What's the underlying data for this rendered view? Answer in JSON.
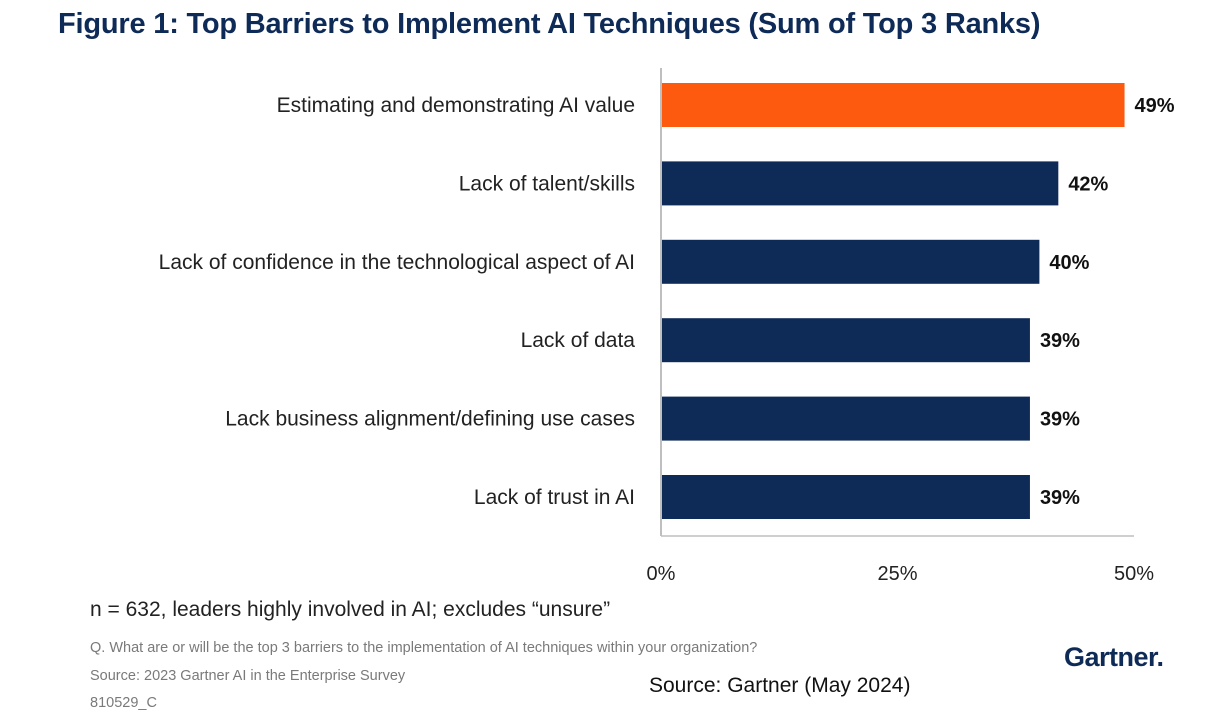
{
  "title": "Figure 1: Top Barriers to Implement AI Techniques (Sum of Top 3 Ranks)",
  "colors": {
    "highlight": "#fe5a0f",
    "bar": "#0e2a57",
    "title": "#0e2a57",
    "axis": "#bfbfbf"
  },
  "chart_data": {
    "type": "bar",
    "orientation": "horizontal",
    "categories": [
      "Estimating and demonstrating AI value",
      "Lack of talent/skills",
      "Lack of confidence in the technological aspect of AI",
      "Lack of data",
      "Lack business alignment/defining use cases",
      "Lack of trust in AI"
    ],
    "values": [
      49,
      42,
      40,
      39,
      39,
      39
    ],
    "value_labels": [
      "49%",
      "42%",
      "40%",
      "39%",
      "39%",
      "39%"
    ],
    "highlight_index": 0,
    "xlim": [
      0,
      50
    ],
    "xticks": [
      0,
      25,
      50
    ],
    "xtick_labels": [
      "0%",
      "25%",
      "50%"
    ],
    "grid": false,
    "legend": "none"
  },
  "notes": {
    "sample": "n = 632, leaders highly involved in AI; excludes “unsure”",
    "question": "Q. What are or will be the top 3 barriers to the implementation of AI techniques within your organization?",
    "survey_source": "Source: 2023 Gartner AI in the Enterprise Survey",
    "doc_id": "810529_C",
    "source_caption": "Source: Gartner (May 2024)"
  },
  "logo_text": "Gartner."
}
